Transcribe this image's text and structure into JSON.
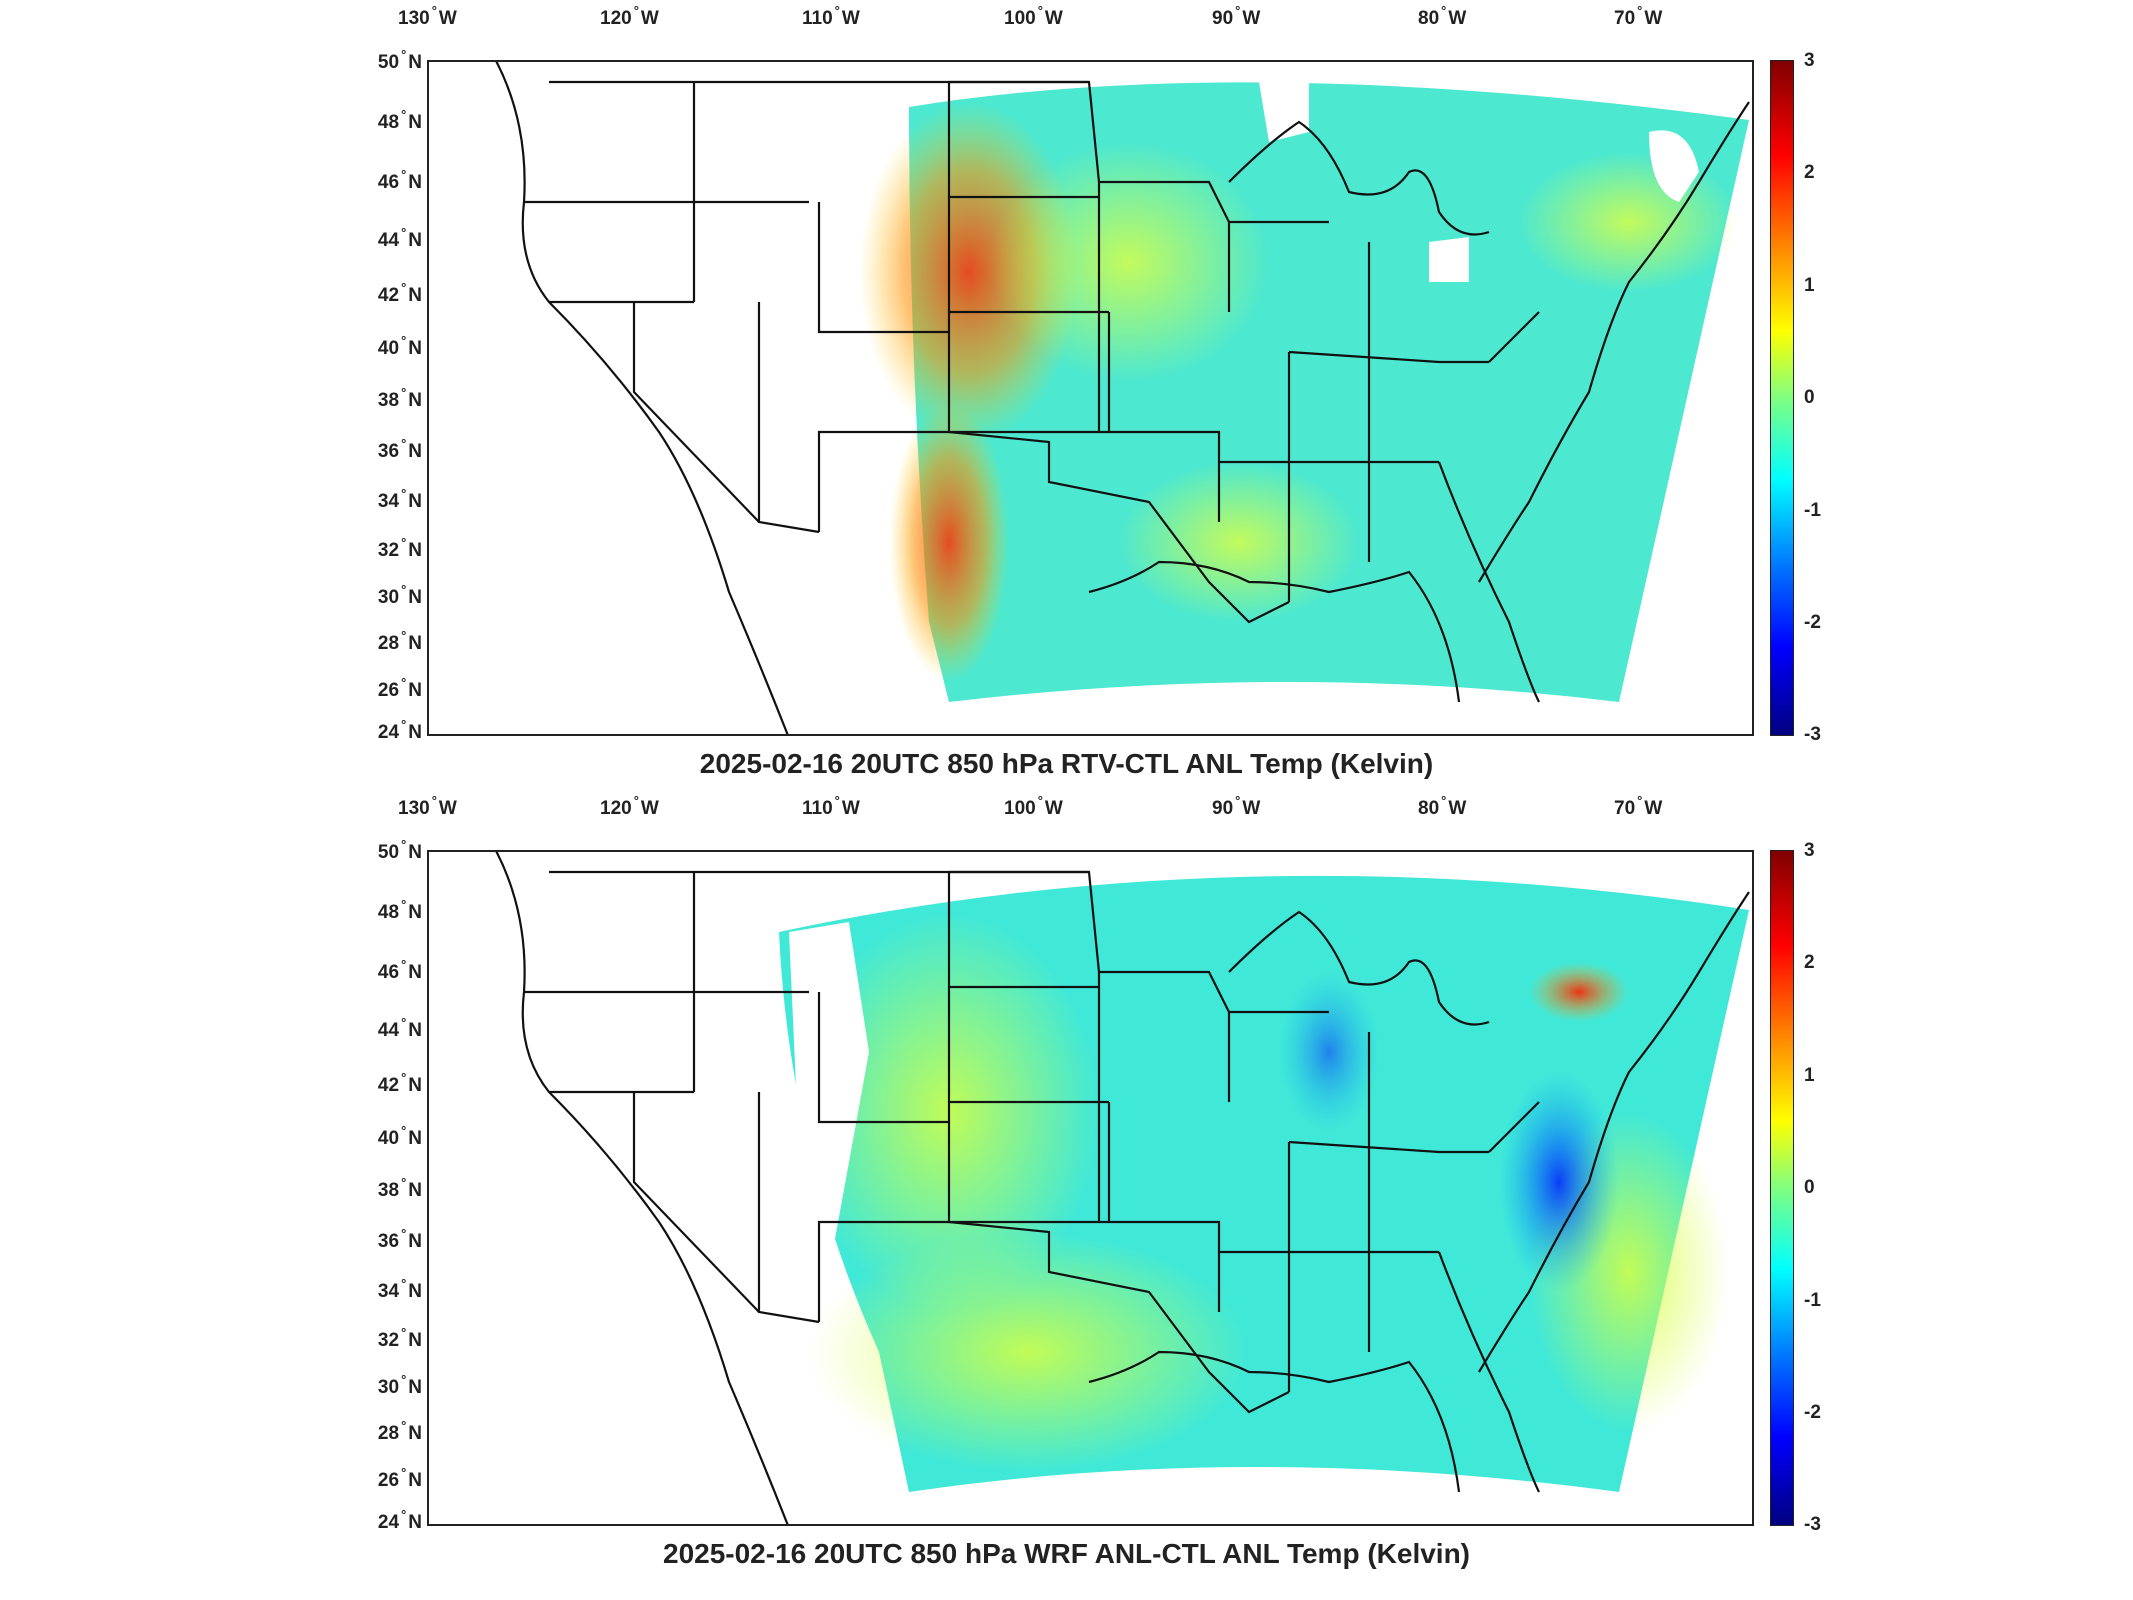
{
  "lon_labels": [
    {
      "deg": "130",
      "dir": "W"
    },
    {
      "deg": "120",
      "dir": "W"
    },
    {
      "deg": "110",
      "dir": "W"
    },
    {
      "deg": "100",
      "dir": "W"
    },
    {
      "deg": "90",
      "dir": "W"
    },
    {
      "deg": "80",
      "dir": "W"
    },
    {
      "deg": "70",
      "dir": "W"
    }
  ],
  "lat_labels": [
    {
      "deg": "50",
      "dir": "N"
    },
    {
      "deg": "48",
      "dir": "N"
    },
    {
      "deg": "46",
      "dir": "N"
    },
    {
      "deg": "44",
      "dir": "N"
    },
    {
      "deg": "42",
      "dir": "N"
    },
    {
      "deg": "40",
      "dir": "N"
    },
    {
      "deg": "38",
      "dir": "N"
    },
    {
      "deg": "36",
      "dir": "N"
    },
    {
      "deg": "34",
      "dir": "N"
    },
    {
      "deg": "32",
      "dir": "N"
    },
    {
      "deg": "30",
      "dir": "N"
    },
    {
      "deg": "28",
      "dir": "N"
    },
    {
      "deg": "26",
      "dir": "N"
    },
    {
      "deg": "24",
      "dir": "N"
    }
  ],
  "colorbar": {
    "ticks": [
      "3",
      "2",
      "1",
      "0",
      "-1",
      "-2",
      "-3"
    ],
    "colors": [
      "#800000",
      "#ff0000",
      "#ff8000",
      "#ffff00",
      "#80ff80",
      "#00ffff",
      "#0080ff",
      "#0000ff",
      "#000080"
    ]
  },
  "panels": [
    {
      "title": "2025-02-16 20UTC 850 hPa RTV-CTL ANL Temp (Kelvin)"
    },
    {
      "title": "2025-02-16 20UTC 850 hPa WRF ANL-CTL ANL Temp (Kelvin)"
    }
  ]
}
